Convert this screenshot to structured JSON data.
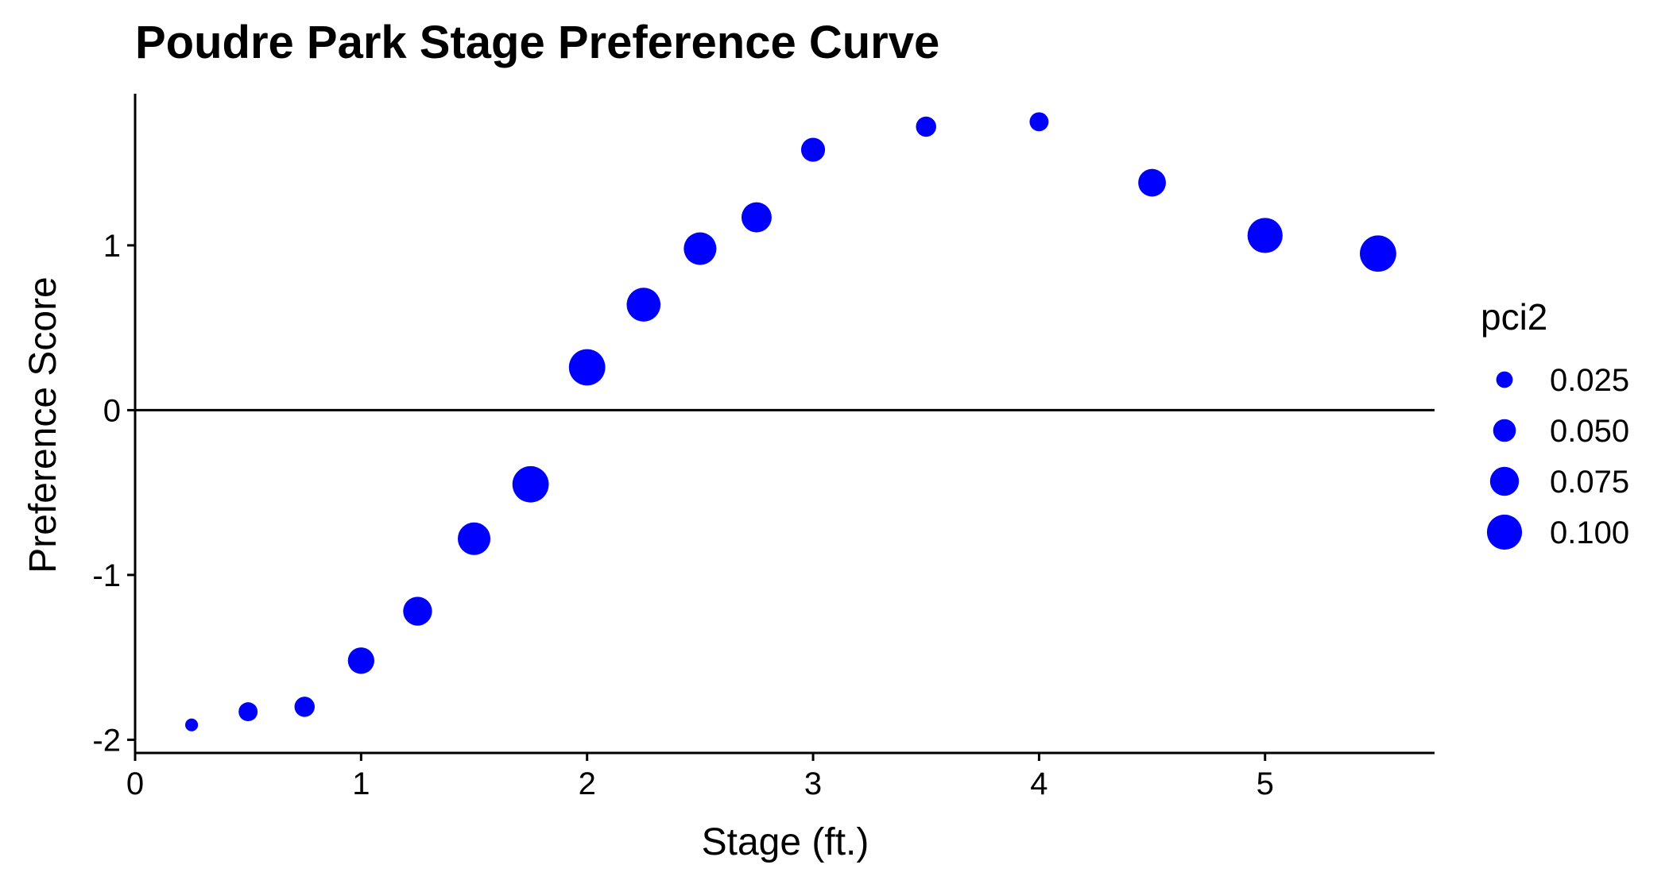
{
  "chart_data": {
    "type": "scatter",
    "title": "Poudre Park Stage Preference Curve",
    "xlabel": "Stage (ft.)",
    "ylabel": "Preference Score",
    "xlim": [
      0,
      5.75
    ],
    "ylim": [
      -2.08,
      1.92
    ],
    "x_ticks": [
      0,
      1,
      2,
      3,
      4,
      5
    ],
    "y_ticks": [
      -2,
      -1,
      0,
      1
    ],
    "reference_line_y": 0,
    "grid": false,
    "legend_position": "right",
    "legend": {
      "title": "pci2",
      "entries": [
        {
          "label": "0.025",
          "value": 0.025
        },
        {
          "label": "0.050",
          "value": 0.05
        },
        {
          "label": "0.075",
          "value": 0.075
        },
        {
          "label": "0.100",
          "value": 0.1
        }
      ]
    },
    "point_color": "#0000ff",
    "points": [
      {
        "x": 0.25,
        "y": -1.91,
        "size": 0.01
      },
      {
        "x": 0.5,
        "y": -1.83,
        "size": 0.035
      },
      {
        "x": 0.75,
        "y": -1.8,
        "size": 0.04
      },
      {
        "x": 1.0,
        "y": -1.52,
        "size": 0.065
      },
      {
        "x": 1.25,
        "y": -1.22,
        "size": 0.075
      },
      {
        "x": 1.5,
        "y": -0.78,
        "size": 0.09
      },
      {
        "x": 1.75,
        "y": -0.45,
        "size": 0.105
      },
      {
        "x": 2.0,
        "y": 0.26,
        "size": 0.105
      },
      {
        "x": 2.25,
        "y": 0.64,
        "size": 0.095
      },
      {
        "x": 2.5,
        "y": 0.98,
        "size": 0.09
      },
      {
        "x": 2.75,
        "y": 1.17,
        "size": 0.08
      },
      {
        "x": 3.0,
        "y": 1.58,
        "size": 0.055
      },
      {
        "x": 3.5,
        "y": 1.72,
        "size": 0.04
      },
      {
        "x": 4.0,
        "y": 1.75,
        "size": 0.035
      },
      {
        "x": 4.5,
        "y": 1.38,
        "size": 0.07
      },
      {
        "x": 5.0,
        "y": 1.06,
        "size": 0.1
      },
      {
        "x": 5.5,
        "y": 0.95,
        "size": 0.105
      }
    ]
  }
}
